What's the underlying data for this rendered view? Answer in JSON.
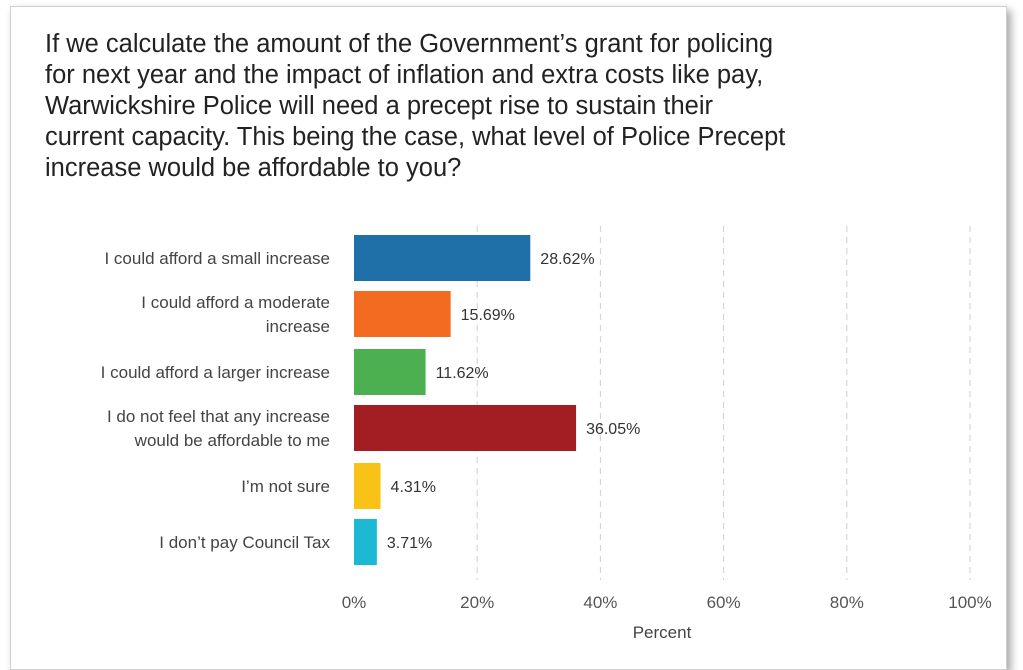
{
  "question": "If we calculate the amount of the Government’s grant for policing\nfor next year and the impact of inflation and extra costs like pay,\nWarwickshire Police will need a precept rise to sustain their\ncurrent capacity.  This being the case, what level of Police Precept\nincrease would be affordable to you?",
  "chart_data": {
    "type": "bar",
    "orientation": "horizontal",
    "categories": [
      [
        "I could afford a small increase"
      ],
      [
        "I could afford a moderate",
        "increase"
      ],
      [
        "I could afford a larger increase"
      ],
      [
        "I do not feel that any increase",
        "would be affordable to me"
      ],
      [
        "I’m not sure"
      ],
      [
        "I don’t pay Council Tax"
      ]
    ],
    "values": [
      28.62,
      15.69,
      11.62,
      36.05,
      4.31,
      3.71
    ],
    "value_labels": [
      "28.62%",
      "15.69%",
      "11.62%",
      "36.05%",
      "4.31%",
      "3.71%"
    ],
    "colors": [
      "#1f6fa8",
      "#f36b21",
      "#4caf50",
      "#a21e22",
      "#f9c217",
      "#1cb8d4"
    ],
    "xlim": [
      0,
      100
    ],
    "xticks": [
      0,
      20,
      40,
      60,
      80,
      100
    ],
    "xtick_labels": [
      "0%",
      "20%",
      "40%",
      "60%",
      "80%",
      "100%"
    ],
    "xlabel": "Percent",
    "grid": "vertical dashed",
    "legend": "none"
  }
}
